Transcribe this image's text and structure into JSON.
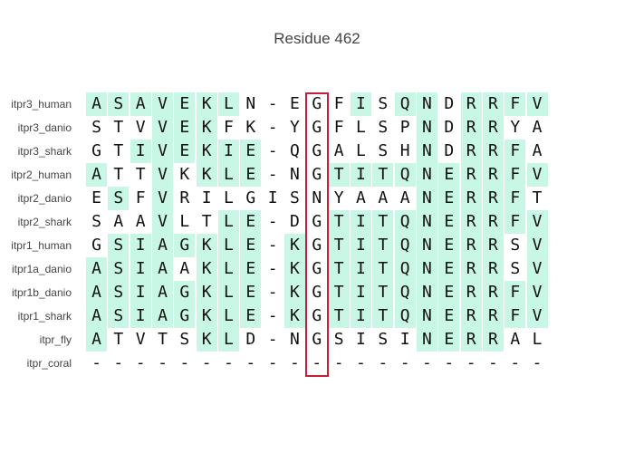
{
  "title": "Residue 462",
  "colors": {
    "conserved_background": "#c9f7e6",
    "highlight_border": "#c41e3a",
    "text": "#111111",
    "label": "#444444"
  },
  "highlighted_column": 10,
  "rows": [
    {
      "label": "itpr3_human",
      "residues": "ASAVEKLN-EGFISQNDRRFV",
      "highlight": [
        1,
        1,
        1,
        1,
        1,
        1,
        1,
        0,
        0,
        0,
        0,
        0,
        1,
        0,
        1,
        1,
        0,
        1,
        1,
        1,
        1
      ]
    },
    {
      "label": "itpr3_danio",
      "residues": "STVVEKFK-YGFLSPNDRRYA",
      "highlight": [
        0,
        0,
        0,
        1,
        1,
        1,
        0,
        0,
        0,
        0,
        0,
        0,
        0,
        0,
        0,
        1,
        0,
        1,
        1,
        0,
        0
      ]
    },
    {
      "label": "itpr3_shark",
      "residues": "GTIVEKIE-QGALSHNDRRFA",
      "highlight": [
        0,
        0,
        1,
        1,
        1,
        1,
        1,
        1,
        0,
        0,
        0,
        0,
        0,
        0,
        0,
        1,
        0,
        1,
        1,
        1,
        0
      ]
    },
    {
      "label": "itpr2_human",
      "residues": "ATTVKKLE-NGTITQNERRFV",
      "highlight": [
        1,
        0,
        0,
        1,
        0,
        1,
        1,
        1,
        0,
        0,
        0,
        1,
        1,
        1,
        1,
        1,
        1,
        1,
        1,
        1,
        1
      ]
    },
    {
      "label": "itpr2_danio",
      "residues": "ESFVRILGISNYAAANERRFT",
      "highlight": [
        0,
        1,
        0,
        1,
        0,
        0,
        0,
        0,
        0,
        0,
        0,
        0,
        0,
        0,
        0,
        1,
        1,
        1,
        1,
        1,
        0
      ]
    },
    {
      "label": "itpr2_shark",
      "residues": "SAAVLTLE-DGTITQNERRFV",
      "highlight": [
        0,
        0,
        0,
        1,
        0,
        0,
        1,
        1,
        0,
        0,
        0,
        1,
        1,
        1,
        1,
        1,
        1,
        1,
        1,
        1,
        1
      ]
    },
    {
      "label": "itpr1_human",
      "residues": "GSIAGKLE-KGTITQNERRSV",
      "highlight": [
        0,
        1,
        1,
        1,
        1,
        1,
        1,
        1,
        0,
        1,
        0,
        1,
        1,
        1,
        1,
        1,
        1,
        1,
        1,
        0,
        1
      ]
    },
    {
      "label": "itpr1a_danio",
      "residues": "ASIAAKLE-KGTITQNERRSV",
      "highlight": [
        1,
        1,
        1,
        1,
        0,
        1,
        1,
        1,
        0,
        1,
        0,
        1,
        1,
        1,
        1,
        1,
        1,
        1,
        1,
        0,
        1
      ]
    },
    {
      "label": "itpr1b_danio",
      "residues": "ASIAGKLE-KGTITQNERRFV",
      "highlight": [
        1,
        1,
        1,
        1,
        1,
        1,
        1,
        1,
        0,
        1,
        0,
        1,
        1,
        1,
        1,
        1,
        1,
        1,
        1,
        1,
        1
      ]
    },
    {
      "label": "itpr1_shark",
      "residues": "ASIAGKLE-KGTITQNERRFV",
      "highlight": [
        1,
        1,
        1,
        1,
        1,
        1,
        1,
        1,
        0,
        1,
        0,
        1,
        1,
        1,
        1,
        1,
        1,
        1,
        1,
        1,
        1
      ]
    },
    {
      "label": "itpr_fly",
      "residues": "ATVTSKLD-NGSISINERRAL",
      "highlight": [
        1,
        0,
        0,
        0,
        0,
        1,
        1,
        0,
        0,
        0,
        0,
        0,
        0,
        0,
        0,
        1,
        1,
        1,
        1,
        0,
        0
      ]
    },
    {
      "label": "itpr_coral",
      "residues": "---------------------",
      "highlight": [
        0,
        0,
        0,
        0,
        0,
        0,
        0,
        0,
        0,
        0,
        0,
        0,
        0,
        0,
        0,
        0,
        0,
        0,
        0,
        0,
        0
      ]
    }
  ]
}
